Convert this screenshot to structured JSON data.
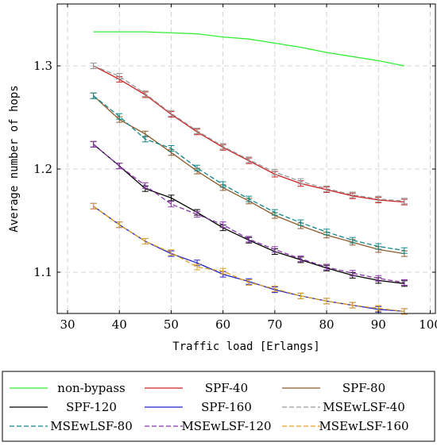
{
  "chart_data": {
    "type": "line",
    "xlabel": "Traffic load [Erlangs]",
    "ylabel": "Average number of hops",
    "xlim": [
      28,
      101
    ],
    "ylim": [
      1.06,
      1.36
    ],
    "xticks": [
      30,
      40,
      50,
      60,
      70,
      80,
      90,
      100
    ],
    "yticks": [
      1.1,
      1.2,
      1.3
    ],
    "ytick_labels": [
      "1.1",
      "1.2",
      "1.3"
    ],
    "grid": true,
    "legend_position": "bottom",
    "legend_columns": 3,
    "x": [
      35,
      40,
      45,
      50,
      55,
      60,
      65,
      70,
      75,
      80,
      85,
      90,
      95
    ],
    "series": [
      {
        "name": "non-bypass",
        "color": "#33ee33",
        "dash": "solid",
        "error_bars": false,
        "values": [
          1.333,
          1.333,
          1.333,
          1.332,
          1.331,
          1.328,
          1.326,
          1.322,
          1.318,
          1.313,
          1.309,
          1.305,
          1.3
        ]
      },
      {
        "name": "SPF-40",
        "color": "#cc2222",
        "dash": "solid",
        "error_bars": true,
        "values": [
          1.3,
          1.287,
          1.272,
          1.253,
          1.236,
          1.221,
          1.208,
          1.195,
          1.186,
          1.18,
          1.174,
          1.17,
          1.168
        ]
      },
      {
        "name": "SPF-80",
        "color": "#8b5a2b",
        "dash": "solid",
        "error_bars": true,
        "values": [
          1.271,
          1.248,
          1.234,
          1.216,
          1.198,
          1.182,
          1.169,
          1.155,
          1.145,
          1.136,
          1.129,
          1.122,
          1.118
        ]
      },
      {
        "name": "SPF-120",
        "color": "#000000",
        "dash": "solid",
        "error_bars": true,
        "values": [
          1.224,
          1.203,
          1.181,
          1.172,
          1.158,
          1.143,
          1.131,
          1.12,
          1.112,
          1.104,
          1.097,
          1.092,
          1.089
        ]
      },
      {
        "name": "SPF-160",
        "color": "#2222cc",
        "dash": "solid",
        "error_bars": true,
        "values": [
          1.164,
          1.146,
          1.13,
          1.118,
          1.109,
          1.098,
          1.091,
          1.083,
          1.077,
          1.072,
          1.068,
          1.064,
          1.062
        ]
      },
      {
        "name": "MSEwLSF-40",
        "color": "#999999",
        "dash": "dashed",
        "error_bars": true,
        "values": [
          1.3,
          1.29,
          1.273,
          1.254,
          1.237,
          1.222,
          1.209,
          1.197,
          1.188,
          1.181,
          1.175,
          1.171,
          1.169
        ]
      },
      {
        "name": "MSEwLSF-80",
        "color": "#118888",
        "dash": "dashed",
        "error_bars": true,
        "values": [
          1.271,
          1.251,
          1.229,
          1.22,
          1.201,
          1.185,
          1.171,
          1.158,
          1.148,
          1.139,
          1.131,
          1.125,
          1.121
        ]
      },
      {
        "name": "MSEwLSF-120",
        "color": "#8833aa",
        "dash": "dashed",
        "error_bars": true,
        "values": [
          1.224,
          1.203,
          1.184,
          1.166,
          1.156,
          1.146,
          1.132,
          1.122,
          1.113,
          1.105,
          1.099,
          1.094,
          1.09
        ]
      },
      {
        "name": "MSEwLSF-160",
        "color": "#e0a020",
        "dash": "dashed",
        "error_bars": true,
        "values": [
          1.164,
          1.146,
          1.13,
          1.119,
          1.105,
          1.101,
          1.09,
          1.084,
          1.077,
          1.072,
          1.068,
          1.065,
          1.062
        ]
      }
    ]
  }
}
